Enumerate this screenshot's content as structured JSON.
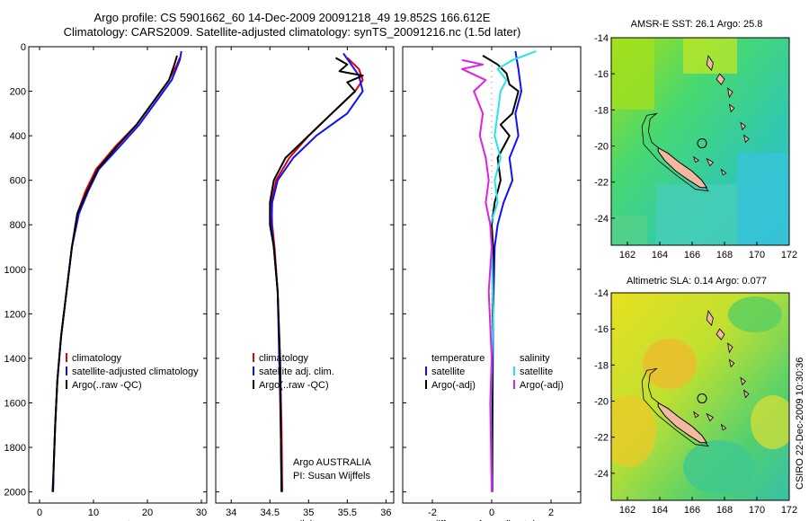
{
  "header": {
    "title_line1": "Argo profile: CS 5901662_60 14-Dec-2009 20091218_49 19.852S 166.612E",
    "title_line2": "Climatology: CARS2009. Satellite-adjusted climatology: synTS_20091216.nc (1.5d later)"
  },
  "colors": {
    "red": "#e00000",
    "blue": "#1010ff",
    "black": "#000000",
    "cyan": "#22e6e6",
    "magenta": "#e020e0"
  },
  "chart_data": [
    {
      "type": "line",
      "id": "temperature",
      "xlabel": "temperature",
      "ylabel": "",
      "xlim": [
        -2,
        31
      ],
      "ylim": [
        2050,
        0
      ],
      "xticks": [
        "0",
        "10",
        "20",
        "30"
      ],
      "xtick_values": [
        0,
        10,
        20,
        30
      ],
      "yticks": [
        "0",
        "200",
        "400",
        "600",
        "800",
        "1000",
        "1200",
        "1400",
        "1600",
        "1800",
        "2000"
      ],
      "ytick_values": [
        0,
        200,
        400,
        600,
        800,
        1000,
        1200,
        1400,
        1600,
        1800,
        2000
      ],
      "legend": [
        {
          "label": "climatology",
          "color": "red"
        },
        {
          "label": "satellite-adjusted climatology",
          "color": "blue"
        },
        {
          "label": "Argo(..raw -QC)",
          "color": "black"
        }
      ],
      "series": [
        {
          "name": "climatology",
          "color": "red",
          "points": [
            [
              26,
              50
            ],
            [
              25.5,
              80
            ],
            [
              24,
              150
            ],
            [
              21,
              250
            ],
            [
              18,
              350
            ],
            [
              14,
              450
            ],
            [
              10.5,
              550
            ],
            [
              8.5,
              650
            ],
            [
              7,
              750
            ],
            [
              6,
              900
            ],
            [
              5,
              1100
            ],
            [
              4,
              1300
            ],
            [
              3.3,
              1500
            ],
            [
              2.9,
              1700
            ],
            [
              2.6,
              1900
            ],
            [
              2.5,
              2000
            ]
          ]
        },
        {
          "name": "satellite-adjusted climatology",
          "color": "blue",
          "points": [
            [
              26.3,
              20
            ],
            [
              26,
              60
            ],
            [
              24.5,
              150
            ],
            [
              21.5,
              250
            ],
            [
              18.5,
              350
            ],
            [
              14.8,
              450
            ],
            [
              11,
              550
            ],
            [
              9,
              650
            ],
            [
              7.3,
              750
            ],
            [
              6,
              900
            ],
            [
              5,
              1100
            ],
            [
              4,
              1300
            ],
            [
              3.3,
              1500
            ],
            [
              2.9,
              1700
            ],
            [
              2.6,
              1900
            ],
            [
              2.4,
              2000
            ]
          ]
        },
        {
          "name": "Argo(..raw -QC)",
          "color": "black",
          "points": [
            [
              25.5,
              40
            ],
            [
              25,
              80
            ],
            [
              24,
              150
            ],
            [
              21,
              250
            ],
            [
              18,
              350
            ],
            [
              14.3,
              450
            ],
            [
              10.8,
              550
            ],
            [
              8.8,
              650
            ],
            [
              7,
              750
            ],
            [
              6,
              900
            ],
            [
              5,
              1100
            ],
            [
              4,
              1300
            ],
            [
              3.3,
              1500
            ],
            [
              2.9,
              1700
            ],
            [
              2.6,
              1900
            ],
            [
              2.5,
              2000
            ]
          ]
        }
      ]
    },
    {
      "type": "line",
      "id": "salinity",
      "xlabel": "salinity",
      "xlim": [
        33.8,
        36.1
      ],
      "ylim": [
        2050,
        0
      ],
      "xticks": [
        "34",
        "34.5",
        "35",
        "35.5",
        "36"
      ],
      "xtick_values": [
        34,
        34.5,
        35,
        35.5,
        36
      ],
      "legend": [
        {
          "label": "climatology",
          "color": "red"
        },
        {
          "label": "satellite adj. clim.",
          "color": "blue"
        },
        {
          "label": "Argo(..raw -QC)",
          "color": "black"
        }
      ],
      "annotation": [
        "Argo AUSTRALIA",
        "PI: Susan Wijffels"
      ],
      "series": [
        {
          "name": "climatology",
          "color": "red",
          "points": [
            [
              35.5,
              50
            ],
            [
              35.65,
              100
            ],
            [
              35.7,
              150
            ],
            [
              35.6,
              200
            ],
            [
              35.3,
              300
            ],
            [
              35,
              400
            ],
            [
              34.75,
              500
            ],
            [
              34.58,
              600
            ],
            [
              34.52,
              700
            ],
            [
              34.53,
              800
            ],
            [
              34.56,
              900
            ],
            [
              34.6,
              1100
            ],
            [
              34.63,
              1400
            ],
            [
              34.65,
              1700
            ],
            [
              34.66,
              2000
            ]
          ]
        },
        {
          "name": "satellite adj. clim.",
          "color": "blue",
          "points": [
            [
              35.45,
              30
            ],
            [
              35.55,
              80
            ],
            [
              35.65,
              130
            ],
            [
              35.7,
              200
            ],
            [
              35.5,
              300
            ],
            [
              35.1,
              400
            ],
            [
              34.8,
              500
            ],
            [
              34.6,
              600
            ],
            [
              34.53,
              700
            ],
            [
              34.52,
              800
            ],
            [
              34.55,
              900
            ],
            [
              34.6,
              1100
            ],
            [
              34.62,
              1400
            ],
            [
              34.64,
              1700
            ],
            [
              34.65,
              2000
            ]
          ]
        },
        {
          "name": "Argo(..raw -QC)",
          "color": "black",
          "points": [
            [
              35.35,
              50
            ],
            [
              35.5,
              80
            ],
            [
              35.4,
              110
            ],
            [
              35.7,
              130
            ],
            [
              35.5,
              160
            ],
            [
              35.6,
              200
            ],
            [
              35.3,
              300
            ],
            [
              35,
              400
            ],
            [
              34.7,
              500
            ],
            [
              34.55,
              600
            ],
            [
              34.5,
              700
            ],
            [
              34.5,
              800
            ],
            [
              34.55,
              900
            ],
            [
              34.6,
              1100
            ],
            [
              34.63,
              1400
            ],
            [
              34.64,
              1700
            ],
            [
              34.65,
              2000
            ]
          ]
        }
      ]
    },
    {
      "type": "line",
      "id": "difference",
      "xlabel": "difference from climatology",
      "xlim": [
        -3,
        3
      ],
      "ylim": [
        2050,
        0
      ],
      "xticks": [
        "-2",
        "0",
        "2"
      ],
      "xtick_values": [
        -2,
        0,
        2
      ],
      "legend_left": [
        {
          "label": "temperature",
          "color": "none"
        },
        {
          "label": "satellite",
          "color": "blue"
        },
        {
          "label": "Argo(-adj)",
          "color": "black"
        }
      ],
      "legend_right": [
        {
          "label": "salinity",
          "color": "none"
        },
        {
          "label": "satellite",
          "color": "cyan"
        },
        {
          "label": "Argo(-adj)",
          "color": "magenta"
        }
      ],
      "series": [
        {
          "name": "temperature satellite",
          "color": "blue",
          "points": [
            [
              0.8,
              20
            ],
            [
              0.9,
              100
            ],
            [
              1.0,
              200
            ],
            [
              0.8,
              300
            ],
            [
              0.9,
              400
            ],
            [
              0.6,
              500
            ],
            [
              0.7,
              600
            ],
            [
              0.4,
              700
            ],
            [
              0.2,
              800
            ],
            [
              0.1,
              900
            ],
            [
              0.05,
              1200
            ],
            [
              0.03,
              1600
            ],
            [
              0.02,
              2000
            ]
          ]
        },
        {
          "name": "temperature Argo(-adj)",
          "color": "black",
          "points": [
            [
              -0.3,
              40
            ],
            [
              0.2,
              80
            ],
            [
              0.5,
              120
            ],
            [
              0.6,
              170
            ],
            [
              0.9,
              200
            ],
            [
              0.8,
              250
            ],
            [
              0.7,
              300
            ],
            [
              0.3,
              350
            ],
            [
              0.6,
              400
            ],
            [
              0.2,
              500
            ],
            [
              0.3,
              600
            ],
            [
              0.1,
              700
            ],
            [
              0.0,
              800
            ],
            [
              0.05,
              900
            ],
            [
              0.03,
              1200
            ],
            [
              0.02,
              1600
            ],
            [
              0.01,
              2000
            ]
          ]
        },
        {
          "name": "salinity satellite",
          "color": "cyan",
          "points": [
            [
              1.5,
              20
            ],
            [
              0.7,
              60
            ],
            [
              0.2,
              100
            ],
            [
              0.5,
              150
            ],
            [
              0.3,
              200
            ],
            [
              0.2,
              300
            ],
            [
              0.1,
              400
            ],
            [
              0.3,
              500
            ],
            [
              0.1,
              600
            ],
            [
              0.2,
              700
            ],
            [
              -0.05,
              800
            ],
            [
              0.0,
              900
            ],
            [
              0.05,
              1200
            ],
            [
              -0.03,
              1600
            ],
            [
              0.0,
              2000
            ]
          ]
        },
        {
          "name": "salinity Argo(-adj)",
          "color": "magenta",
          "points": [
            [
              -1.0,
              60
            ],
            [
              -0.3,
              80
            ],
            [
              -1.0,
              100
            ],
            [
              -0.2,
              150
            ],
            [
              -0.6,
              200
            ],
            [
              -0.3,
              300
            ],
            [
              -0.4,
              400
            ],
            [
              -0.2,
              500
            ],
            [
              -0.1,
              600
            ],
            [
              -0.2,
              700
            ],
            [
              -0.05,
              800
            ],
            [
              0.0,
              900
            ],
            [
              -0.1,
              1100
            ],
            [
              0.0,
              1400
            ],
            [
              -0.05,
              1600
            ],
            [
              0.0,
              2000
            ]
          ]
        }
      ]
    },
    {
      "type": "heatmap",
      "id": "sst-map",
      "title": "AMSR-E SST: 26.1 Argo: 25.8",
      "xlim": [
        161,
        172
      ],
      "ylim": [
        -25.5,
        -14
      ],
      "xticks": [
        "162",
        "164",
        "166",
        "168",
        "170",
        "172"
      ],
      "xtick_values": [
        162,
        164,
        166,
        168,
        170,
        172
      ],
      "yticks": [
        "-14",
        "-16",
        "-18",
        "-20",
        "-22",
        "-24"
      ],
      "ytick_values": [
        -14,
        -16,
        -18,
        -20,
        -22,
        -24
      ],
      "marker": {
        "lon": 166.612,
        "lat": -19.852
      }
    },
    {
      "type": "heatmap",
      "id": "sla-map",
      "title": "Altimetric SLA: 0.14 Argo: 0.077",
      "xlim": [
        161,
        172
      ],
      "ylim": [
        -25.5,
        -14
      ],
      "xticks": [
        "162",
        "164",
        "166",
        "168",
        "170",
        "172"
      ],
      "xtick_values": [
        162,
        164,
        166,
        168,
        170,
        172
      ],
      "yticks": [
        "-14",
        "-16",
        "-18",
        "-20",
        "-22",
        "-24"
      ],
      "ytick_values": [
        -14,
        -16,
        -18,
        -20,
        -22,
        -24
      ],
      "marker": {
        "lon": 166.612,
        "lat": -19.852
      }
    }
  ],
  "footer": {
    "credit": "CSIRO 22-Dec-2009 10:30:36"
  }
}
